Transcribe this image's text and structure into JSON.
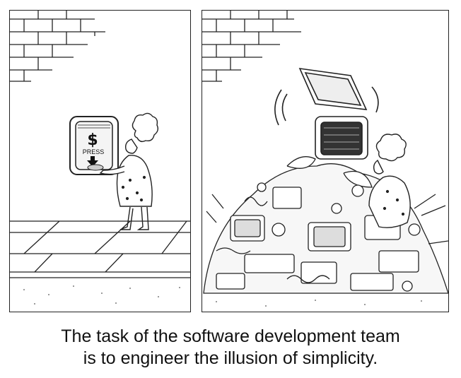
{
  "panels": {
    "left": {
      "button_symbol": "$",
      "button_label": "PRESS"
    }
  },
  "caption": {
    "line1": "The task of the software development team",
    "line2": "is to engineer the illusion of simplicity."
  }
}
